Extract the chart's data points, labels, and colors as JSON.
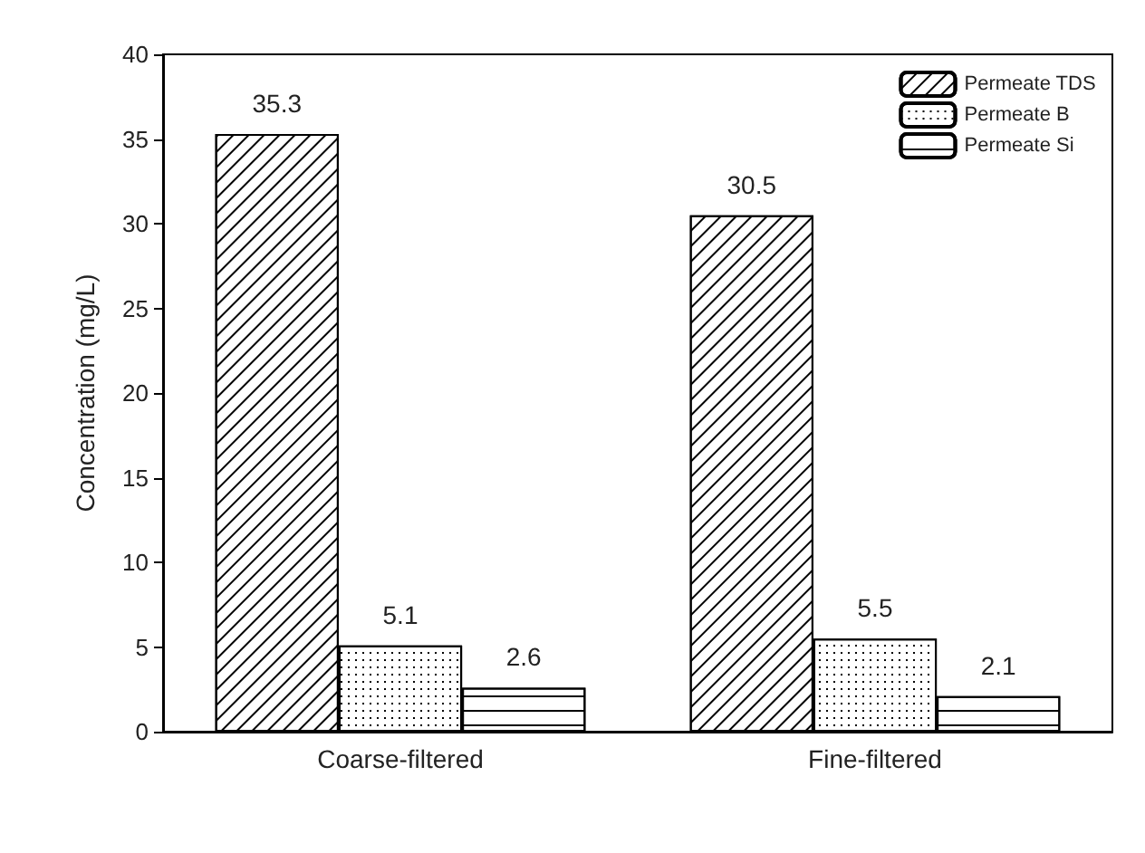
{
  "chart_data": {
    "type": "bar",
    "ylabel": "Concentration (mg/L)",
    "categories": [
      "Coarse-filtered",
      "Fine-filtered"
    ],
    "series": [
      {
        "name": "Permeate TDS",
        "color": "#ffffff",
        "values": [
          35.3,
          30.5
        ]
      },
      {
        "name": "Permeate B",
        "color": "#ffffff",
        "values": [
          5.1,
          5.5
        ]
      },
      {
        "name": "Permeate Si",
        "color": "#ffffff",
        "values": [
          2.6,
          2.1
        ]
      }
    ],
    "ylim": [
      0,
      40
    ],
    "yticks": [
      0,
      5,
      10,
      15,
      20,
      25,
      30,
      35,
      40
    ],
    "data_labels": true,
    "legend": "top right",
    "grid": false
  }
}
